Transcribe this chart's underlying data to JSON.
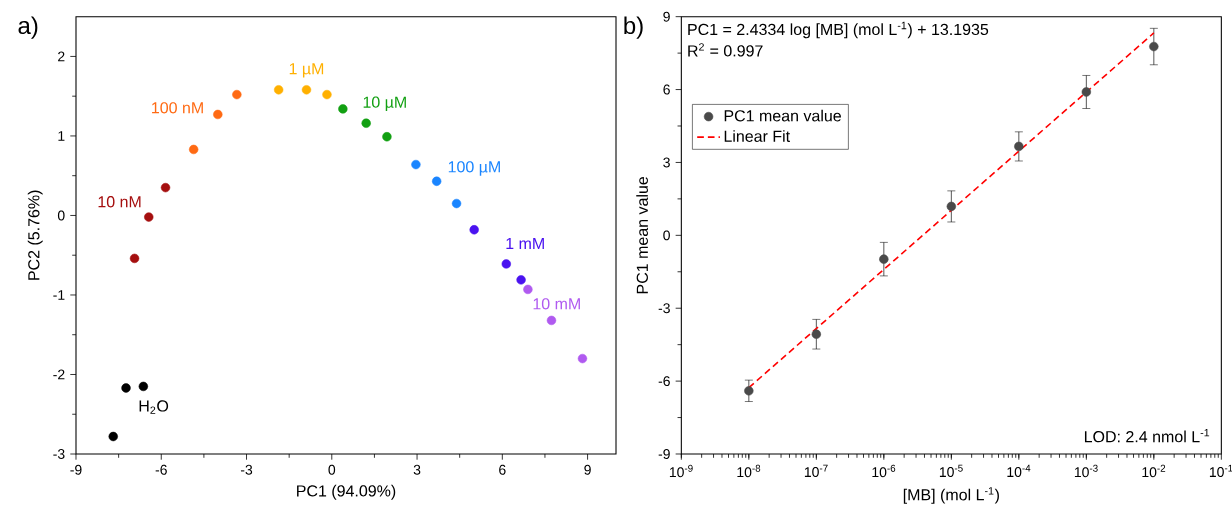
{
  "chart_data": [
    {
      "type": "scatter",
      "title": "a)",
      "xlabel": "PC1 (94.09%)",
      "ylabel": "PC2 (5.76%)",
      "xlim": [
        -9,
        10
      ],
      "ylim": [
        -3,
        2.5
      ],
      "xticks": [
        -9,
        -6,
        -3,
        0,
        3,
        6,
        9
      ],
      "yticks": [
        -3,
        -2,
        -1,
        0,
        1,
        2
      ],
      "marker": "circle",
      "grid": false,
      "legend": false,
      "series": [
        {
          "name": "H$_{2}$O",
          "color": "#000000",
          "x": [
            -7.69,
            -7.24,
            -6.63
          ],
          "values": [
            -2.78,
            -2.17,
            -2.15
          ]
        },
        {
          "name": "10 nM",
          "color": "#a50f0f",
          "x": [
            -6.94,
            -6.44,
            -5.85
          ],
          "values": [
            -0.54,
            -0.02,
            0.35
          ]
        },
        {
          "name": "100 nM",
          "color": "#ff6a13",
          "x": [
            -4.86,
            -4.01,
            -3.34
          ],
          "values": [
            0.83,
            1.27,
            1.52
          ]
        },
        {
          "name": "1 µM",
          "color": "#ffb000",
          "x": [
            -1.87,
            -0.89,
            -0.17
          ],
          "values": [
            1.58,
            1.58,
            1.52
          ]
        },
        {
          "name": "10 µM",
          "color": "#12a012",
          "x": [
            0.39,
            1.21,
            1.94
          ],
          "values": [
            1.34,
            1.16,
            0.99
          ]
        },
        {
          "name": "100 µM",
          "color": "#1a85ff",
          "x": [
            2.96,
            3.69,
            4.39
          ],
          "values": [
            0.64,
            0.43,
            0.15
          ]
        },
        {
          "name": "1 mM",
          "color": "#4a12f0",
          "x": [
            5.01,
            6.14,
            6.66
          ],
          "values": [
            -0.18,
            -0.61,
            -0.81
          ]
        },
        {
          "name": "10 mM",
          "color": "#b05af0",
          "x": [
            6.9,
            7.73,
            8.82
          ],
          "values": [
            -0.93,
            -1.32,
            -1.8
          ]
        }
      ]
    },
    {
      "type": "scatter",
      "title": "b)",
      "xlabel": "[MB] (mol L$^{-1}$)",
      "ylabel": "PC1 mean value",
      "log": "x",
      "xlim": [
        1e-09,
        0.1
      ],
      "ylim": [
        -9,
        9
      ],
      "grid": false,
      "legend": "top left",
      "marker": "circle",
      "xticks": [
        {
          "value": 1e-09,
          "label": "10$^{-9}$"
        },
        {
          "value": 1e-08,
          "label": "10$^{-8}$"
        },
        {
          "value": 1e-07,
          "label": "10$^{-7}$"
        },
        {
          "value": 1e-06,
          "label": "10$^{-6}$"
        },
        {
          "value": 1e-05,
          "label": "10$^{-5}$"
        },
        {
          "value": 0.0001,
          "label": "10$^{-4}$"
        },
        {
          "value": 0.001,
          "label": "10$^{-3}$"
        },
        {
          "value": 0.01,
          "label": "10$^{-2}$"
        },
        {
          "value": 0.1,
          "label": "10$^{-1}$"
        }
      ],
      "yticks": [
        -9,
        -6,
        -3,
        0,
        3,
        6,
        9
      ],
      "annotations": [
        "PC1 = 2.4334 log [MB] (mol L$^{-1}$) + 13.1935",
        "R$^{2}$ = 0.997",
        "LOD: 2.4 nmol L$^{-1}$"
      ],
      "series": [
        {
          "name": "PC1 mean value",
          "type": "scatter",
          "color": "#4a4a4a",
          "x": [
            1e-08,
            1e-07,
            1e-06,
            1e-05,
            0.0001,
            0.001,
            0.01
          ],
          "values": [
            -6.4,
            -4.07,
            -0.98,
            1.19,
            3.66,
            5.9,
            7.77
          ],
          "errors": [
            0.44,
            0.61,
            0.69,
            0.64,
            0.6,
            0.68,
            0.75
          ]
        },
        {
          "name": "Linear Fit",
          "type": "line",
          "color": "#ff0000",
          "line_style": "dashed",
          "marker": "none",
          "x": [
            1e-08,
            0.01
          ],
          "values": [
            -6.27,
            8.33
          ]
        }
      ]
    }
  ]
}
